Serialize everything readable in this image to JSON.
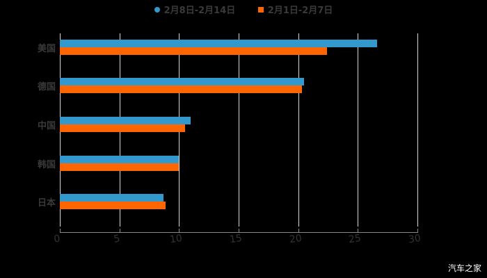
{
  "legend": [
    {
      "label": "2月8日-2月14日",
      "color": "#3399cc",
      "shape": "circle"
    },
    {
      "label": "2月1日-2月7日",
      "color": "#ff6600",
      "shape": "square"
    }
  ],
  "watermark": "汽车之家",
  "chart_data": {
    "type": "bar",
    "orientation": "horizontal",
    "title": "",
    "categories": [
      "美国",
      "德国",
      "中国",
      "韩国",
      "日本"
    ],
    "series": [
      {
        "name": "2月8日-2月14日",
        "color": "#3399cc",
        "values": [
          26.6,
          20.5,
          11.0,
          10.0,
          8.7
        ]
      },
      {
        "name": "2月1日-2月7日",
        "color": "#ff6600",
        "values": [
          22.4,
          20.3,
          10.5,
          10.0,
          8.9
        ]
      }
    ],
    "xlabel": "",
    "ylabel": "",
    "xlim": [
      0,
      30
    ],
    "xticks": [
      "0",
      "5",
      "10",
      "15",
      "20",
      "25",
      "30"
    ],
    "grid": true,
    "legend_position": "top"
  }
}
